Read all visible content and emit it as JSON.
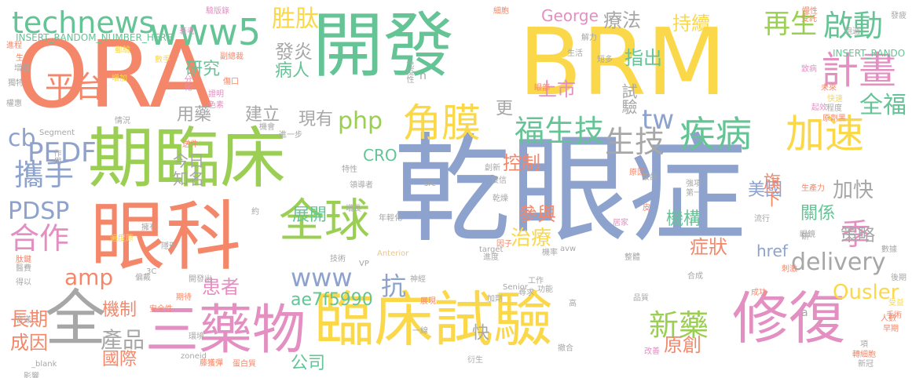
{
  "palette": {
    "orange": "#f4876a",
    "gold": "#fbd84a",
    "green": "#64c495",
    "lime": "#9bcf53",
    "blue": "#8da2cc",
    "pink": "#e38fc1",
    "gray": "#a7a7a7",
    "tan": "#e6c693"
  },
  "words": [
    "乾眼症",
    "ORA",
    "BRM",
    "開發",
    "期臨床",
    "眼科",
    "臨床試驗",
    "修復",
    "三藥物",
    "全",
    "角膜",
    "全球",
    "technews",
    "www5",
    "平台",
    "福生技",
    "疾病",
    "加速",
    "計畫",
    "啟動",
    "全福",
    "生技",
    "攜手",
    "PEDF",
    "cb",
    "PDSP",
    "合作",
    "amp",
    "www",
    "php",
    "tw",
    "delivery",
    "新藥",
    "產品",
    "成因",
    "長期",
    "國際",
    "機制",
    "患者",
    "ae7f5990",
    "抗",
    "治療",
    "控制",
    "參與",
    "原創",
    "Ousler",
    "季",
    "策略",
    "機構",
    "症狀",
    "加快",
    "關係",
    "美國",
    "再生",
    "持續",
    "療法",
    "指出",
    "上市",
    "旗下",
    "發炎",
    "病人",
    "胜肽",
    "展開",
    "研究",
    "現有",
    "建立",
    "用藥",
    "今日",
    "知名",
    "George",
    "試驗",
    "更",
    "公司",
    "快",
    "CRO",
    "href",
    "INSERT_RANDOM_NUMBER_HERE",
    "INSERT_RANDO",
    "Segment",
    "_blank",
    "zoneid",
    "target",
    "Anterior",
    "src",
    "Senior",
    "avw",
    "生產力",
    "受託",
    "免疫性",
    "致病",
    "未來",
    "起效",
    "快速",
    "程度",
    "原劑黑",
    "慢性",
    "細胞",
    "驗版錄",
    "衰老",
    "副總裁",
    "分化",
    "傷口",
    "證明",
    "色素",
    "數手",
    "郵驗",
    "增加",
    "獨特",
    "權惠",
    "情況",
    "作用",
    "送件",
    "進一步",
    "機會",
    "特性",
    "領導者",
    "增長",
    "年輕化",
    "技術",
    "VP",
    "創新",
    "乾燥",
    "投信",
    "神經",
    "進度",
    "因子",
    "機率",
    "整體",
    "工作",
    "功能",
    "尋求",
    "加劑",
    "展現",
    "衍生",
    "一線",
    "撤合",
    "改善",
    "項",
    "轉細胞",
    "新冠",
    "早期",
    "人數",
    "受益",
    "數據",
    "手術",
    "刺激",
    "後期",
    "合成",
    "成功",
    "眼鏡",
    "第一",
    "強項",
    "設計",
    "流行",
    "居家",
    "原因",
    "皮",
    "約",
    "偏戴",
    "隱形",
    "開發出",
    "安全性",
    "期待",
    "環境",
    "蛋白質",
    "藤獲彈",
    "影響",
    "音漾",
    "得以",
    "醫費",
    "肽鍵",
    "遍度原",
    "擁有",
    "解力",
    "短多",
    "生活",
    "眼部",
    "進程",
    "增殖",
    "生成",
    "n",
    "a",
    "3C",
    "高",
    "品質",
    "發疲",
    "跑過",
    "研"
  ]
}
